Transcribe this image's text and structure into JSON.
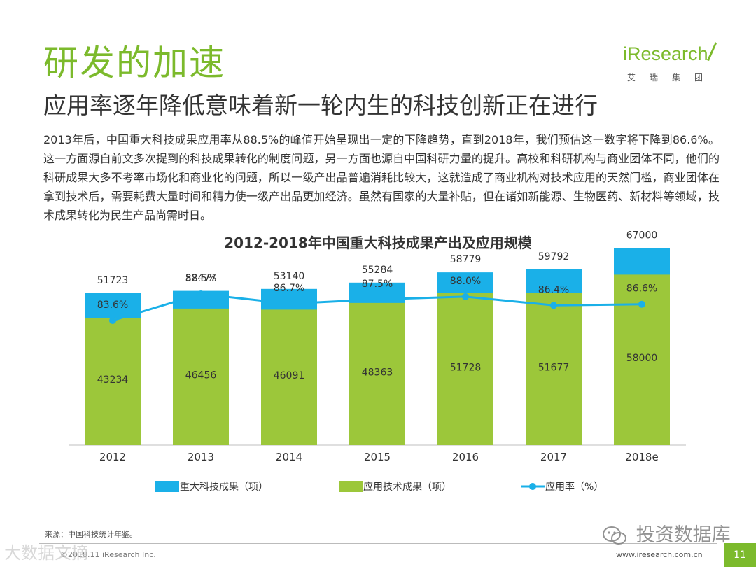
{
  "header": {
    "title": "研发的加速",
    "subtitle": "应用率逐年降低意味着新一轮内生的科技创新正在进行"
  },
  "logo": {
    "brand": "iResearch",
    "group": "艾瑞集团"
  },
  "body_text": "2013年后，中国重大科技成果应用率从88.5%的峰值开始呈现出一定的下降趋势，直到2018年，我们预估这一数字将下降到86.6%。这一方面源自前文多次提到的科技成果转化的制度问题，另一方面也源自中国科研力量的提升。高校和科研机构与商业团体不同，他们的科研成果大多不考率市场化和商业化的问题，所以一级产出品普遍消耗比较大，这就造成了商业机构对技术应用的天然门槛，商业团体在拿到技术后，需要耗费大量时间和精力使一级产出品更加经济。虽然有国家的大量补贴，但在诸如新能源、生物医药、新材料等领域，技术成果转化为民生产品尚需时日。",
  "chart_data": {
    "type": "bar",
    "title": "2012-2018年中国重大科技成果产出及应用规模",
    "categories": [
      "2012",
      "2013",
      "2014",
      "2015",
      "2016",
      "2017",
      "2018e"
    ],
    "series": [
      {
        "name": "重大科技成果（项）",
        "kind": "bar-total",
        "color": "#1ab0e8",
        "values": [
          51723,
          52477,
          53140,
          55284,
          58779,
          59792,
          67000
        ]
      },
      {
        "name": "应用技术成果（项）",
        "kind": "bar-inner",
        "color": "#9cc73a",
        "values": [
          43234,
          46456,
          46091,
          48363,
          51728,
          51677,
          58000
        ]
      },
      {
        "name": "应用率（%）",
        "kind": "line",
        "color": "#1ab0e8",
        "values": [
          83.6,
          88.5,
          86.7,
          87.5,
          88.0,
          86.4,
          86.6
        ],
        "labels": [
          "83.6%",
          "88.5%",
          "86.7%",
          "87.5%",
          "88.0%",
          "86.4%",
          "86.6%"
        ]
      }
    ],
    "legend": "bottom",
    "grid": false
  },
  "source": "来源：中国科技统计年鉴。",
  "footer": {
    "copyright": "©2018.11 iResearch Inc.",
    "website": "www.iresearch.com.cn",
    "page_number": "11"
  },
  "watermark": {
    "right_text": "投资数据库",
    "left_text": "大数据文摘"
  },
  "colors": {
    "accent_green": "#7cba2c",
    "bar_blue": "#1ab0e8",
    "bar_green": "#9cc73a"
  }
}
